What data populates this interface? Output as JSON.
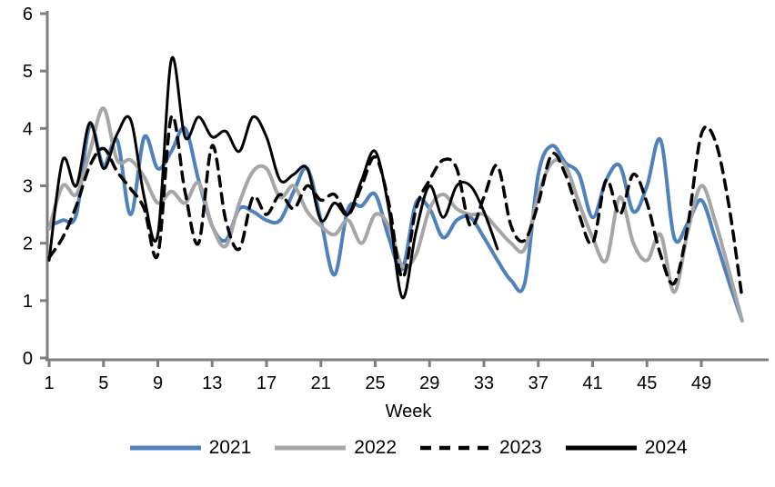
{
  "chart_data": {
    "type": "line",
    "title": "",
    "xlabel": "Week",
    "ylabel": "",
    "ylim": [
      0,
      6
    ],
    "y_ticks": [
      0,
      1,
      2,
      3,
      4,
      5,
      6
    ],
    "x_ticks": [
      1,
      5,
      9,
      13,
      17,
      21,
      25,
      29,
      33,
      37,
      41,
      45,
      49
    ],
    "x_range": [
      1,
      52
    ],
    "grid": false,
    "legend_position": "bottom",
    "axis_color": "#7F7F7F",
    "x": [
      1,
      2,
      3,
      4,
      5,
      6,
      7,
      8,
      9,
      10,
      11,
      12,
      13,
      14,
      15,
      16,
      17,
      18,
      19,
      20,
      21,
      22,
      23,
      24,
      25,
      26,
      27,
      28,
      29,
      30,
      31,
      32,
      33,
      34,
      35,
      36,
      37,
      38,
      39,
      40,
      41,
      42,
      43,
      44,
      45,
      46,
      47,
      48,
      49,
      50,
      51,
      52
    ],
    "series": [
      {
        "name": "2021",
        "color": "#4F81BD",
        "style": "solid",
        "width": 4,
        "values": [
          2.3,
          2.4,
          2.5,
          4.05,
          3.35,
          3.8,
          2.5,
          3.85,
          3.3,
          3.6,
          4.0,
          3.1,
          2.3,
          2.05,
          2.6,
          2.55,
          2.4,
          2.4,
          2.9,
          3.3,
          2.4,
          1.45,
          2.6,
          2.65,
          2.85,
          2.1,
          1.55,
          2.7,
          2.6,
          2.1,
          2.4,
          2.45,
          2.1,
          1.7,
          1.35,
          1.3,
          3.2,
          3.7,
          3.4,
          3.2,
          2.45,
          3.1,
          3.35,
          2.55,
          3.0,
          3.8,
          2.1,
          2.35,
          2.75,
          2.1,
          1.35,
          0.65
        ]
      },
      {
        "name": "2022",
        "color": "#A6A6A6",
        "style": "solid",
        "width": 4,
        "values": [
          2.25,
          3.0,
          2.85,
          3.6,
          4.35,
          3.45,
          3.45,
          3.15,
          2.7,
          2.9,
          2.7,
          3.05,
          2.3,
          1.95,
          2.7,
          3.25,
          3.3,
          2.8,
          3.0,
          2.55,
          2.3,
          2.15,
          2.4,
          2.0,
          2.5,
          2.3,
          1.6,
          1.8,
          2.6,
          2.85,
          2.6,
          2.5,
          2.5,
          2.25,
          2.0,
          1.9,
          2.85,
          3.4,
          3.35,
          2.7,
          2.1,
          1.7,
          2.8,
          2.0,
          1.7,
          2.15,
          1.15,
          2.2,
          3.0,
          2.4,
          1.55,
          0.65
        ]
      },
      {
        "name": "2023",
        "color": "#000000",
        "style": "dashed",
        "width": 3.5,
        "values": [
          1.75,
          2.1,
          2.65,
          3.35,
          3.65,
          3.25,
          2.95,
          2.6,
          1.8,
          4.2,
          2.9,
          2.0,
          3.7,
          2.4,
          1.9,
          2.8,
          2.5,
          2.85,
          2.6,
          3.0,
          2.75,
          2.85,
          2.5,
          3.0,
          3.5,
          2.7,
          1.4,
          2.6,
          3.1,
          3.45,
          3.3,
          2.3,
          2.8,
          3.35,
          2.3,
          2.05,
          2.7,
          3.55,
          3.2,
          2.5,
          2.0,
          3.1,
          2.5,
          3.2,
          2.7,
          1.8,
          1.3,
          2.3,
          3.9,
          3.8,
          2.7,
          1.05
        ]
      },
      {
        "name": "2024",
        "color": "#000000",
        "style": "solid",
        "width": 3,
        "values": [
          1.7,
          3.45,
          3.0,
          4.1,
          3.3,
          3.9,
          4.15,
          2.8,
          2.15,
          5.2,
          3.85,
          4.2,
          3.85,
          3.95,
          3.6,
          4.2,
          3.85,
          3.1,
          3.2,
          3.3,
          2.4,
          2.7,
          2.5,
          3.1,
          3.6,
          2.6,
          1.05,
          2.2,
          3.0,
          2.45,
          3.0,
          3.0,
          2.55,
          1.9,
          null,
          null,
          null,
          null,
          null,
          null,
          null,
          null,
          null,
          null,
          null,
          null,
          null,
          null,
          null,
          null,
          null,
          null
        ]
      }
    ]
  }
}
